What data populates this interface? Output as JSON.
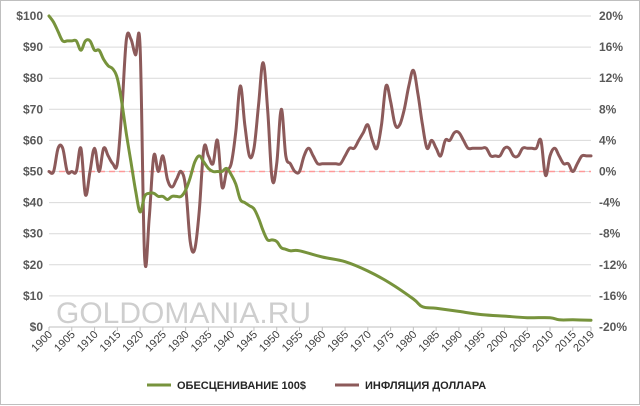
{
  "chart_data": {
    "type": "line",
    "watermark": "GOLDOMANIA.RU",
    "left_axis": {
      "ylim": [
        0,
        100
      ],
      "ticks": [
        "$0",
        "$10",
        "$20",
        "$30",
        "$40",
        "$50",
        "$60",
        "$70",
        "$80",
        "$90",
        "$100"
      ]
    },
    "right_axis": {
      "ylim": [
        -20,
        20
      ],
      "ticks": [
        "-20%",
        "-16%",
        "-12%",
        "-8%",
        "-4%",
        "0%",
        "4%",
        "8%",
        "12%",
        "16%",
        "20%"
      ]
    },
    "x_axis": {
      "xlim": [
        1900,
        2019
      ],
      "ticks": [
        "1900",
        "1905",
        "1910",
        "1915",
        "1920",
        "1925",
        "1930",
        "1935",
        "1940",
        "1945",
        "1950",
        "1955",
        "1960",
        "1965",
        "1970",
        "1975",
        "1980",
        "1985",
        "1990",
        "1995",
        "2000",
        "2005",
        "2010",
        "2015",
        "2019"
      ]
    },
    "legend_position": "bottom",
    "zero_line": {
      "value": 0,
      "axis": "right",
      "color": "#ff9999"
    },
    "series": [
      {
        "name": "ОБЕСЦЕНИВАНИЕ 100$",
        "axis": "left",
        "color": "#77933c",
        "x": [
          1900,
          1901,
          1902,
          1903,
          1904,
          1905,
          1906,
          1907,
          1908,
          1909,
          1910,
          1911,
          1912,
          1913,
          1914,
          1915,
          1916,
          1917,
          1918,
          1919,
          1920,
          1921,
          1922,
          1923,
          1924,
          1925,
          1926,
          1927,
          1928,
          1929,
          1930,
          1931,
          1932,
          1933,
          1934,
          1935,
          1936,
          1937,
          1938,
          1939,
          1940,
          1941,
          1942,
          1943,
          1944,
          1945,
          1946,
          1947,
          1948,
          1949,
          1950,
          1951,
          1952,
          1953,
          1955,
          1960,
          1965,
          1970,
          1975,
          1980,
          1982,
          1985,
          1990,
          1995,
          2000,
          2005,
          2010,
          2012,
          2015,
          2019
        ],
        "values": [
          100,
          98,
          95,
          92,
          92,
          92,
          92,
          89,
          92,
          92,
          89,
          89,
          86,
          84,
          83,
          80,
          72,
          62,
          53,
          44,
          37,
          42,
          43,
          43,
          42,
          42,
          41,
          42,
          42,
          42,
          44,
          48,
          53,
          55,
          53,
          51,
          50,
          50,
          50,
          51,
          49,
          46,
          41,
          40,
          39,
          38,
          35,
          31,
          28,
          28,
          27.5,
          25.5,
          25,
          24.5,
          24.5,
          22.5,
          21,
          18,
          14,
          9,
          6.5,
          6,
          5,
          4,
          3.5,
          3,
          3,
          2.3,
          2.3,
          2.2
        ]
      },
      {
        "name": "ИНФЛЯЦИЯ ДОЛЛАРА",
        "axis": "right",
        "color": "#8c5a5a",
        "x": [
          1900,
          1901,
          1902,
          1903,
          1904,
          1905,
          1906,
          1907,
          1908,
          1909,
          1910,
          1911,
          1912,
          1913,
          1914,
          1915,
          1916,
          1917,
          1918,
          1919,
          1920,
          1921,
          1922,
          1923,
          1924,
          1925,
          1926,
          1927,
          1928,
          1929,
          1930,
          1931,
          1932,
          1933,
          1934,
          1935,
          1936,
          1937,
          1938,
          1939,
          1940,
          1941,
          1942,
          1943,
          1944,
          1945,
          1946,
          1947,
          1948,
          1949,
          1950,
          1951,
          1952,
          1953,
          1954,
          1955,
          1956,
          1957,
          1958,
          1959,
          1960,
          1961,
          1962,
          1963,
          1964,
          1965,
          1966,
          1967,
          1968,
          1969,
          1970,
          1971,
          1972,
          1973,
          1974,
          1975,
          1976,
          1977,
          1978,
          1979,
          1980,
          1981,
          1982,
          1983,
          1984,
          1985,
          1986,
          1987,
          1988,
          1989,
          1990,
          1991,
          1992,
          1993,
          1994,
          1995,
          1996,
          1997,
          1998,
          1999,
          2000,
          2001,
          2002,
          2003,
          2004,
          2005,
          2006,
          2007,
          2008,
          2009,
          2010,
          2011,
          2012,
          2013,
          2014,
          2015,
          2016,
          2017,
          2018,
          2019
        ],
        "values": [
          0,
          0,
          3,
          3,
          0,
          0,
          0,
          3,
          -3,
          0,
          3,
          0,
          3,
          2,
          1,
          1,
          8,
          17,
          17,
          15,
          16,
          -11,
          -6,
          2,
          0,
          2,
          -1,
          -2,
          -1,
          0,
          -2,
          -9,
          -10,
          -5,
          3,
          2,
          1,
          4,
          -2,
          0,
          1,
          5,
          11,
          6,
          2,
          3,
          8.5,
          14,
          8,
          -1,
          1,
          8,
          2,
          1,
          0,
          0,
          2,
          3,
          2,
          1,
          1,
          1,
          1,
          1,
          1,
          2,
          3,
          3,
          4,
          5,
          6,
          4,
          3,
          6,
          11,
          9,
          6,
          6,
          8,
          11,
          13,
          10,
          6,
          3,
          4,
          3,
          2,
          4,
          4,
          5,
          5,
          4,
          3,
          3,
          3,
          3,
          3,
          2,
          2,
          2,
          3,
          3,
          2,
          2,
          3,
          3,
          3,
          3,
          4,
          -0.5,
          2,
          3,
          2,
          1,
          1,
          0,
          1,
          2,
          2,
          2
        ]
      }
    ]
  }
}
